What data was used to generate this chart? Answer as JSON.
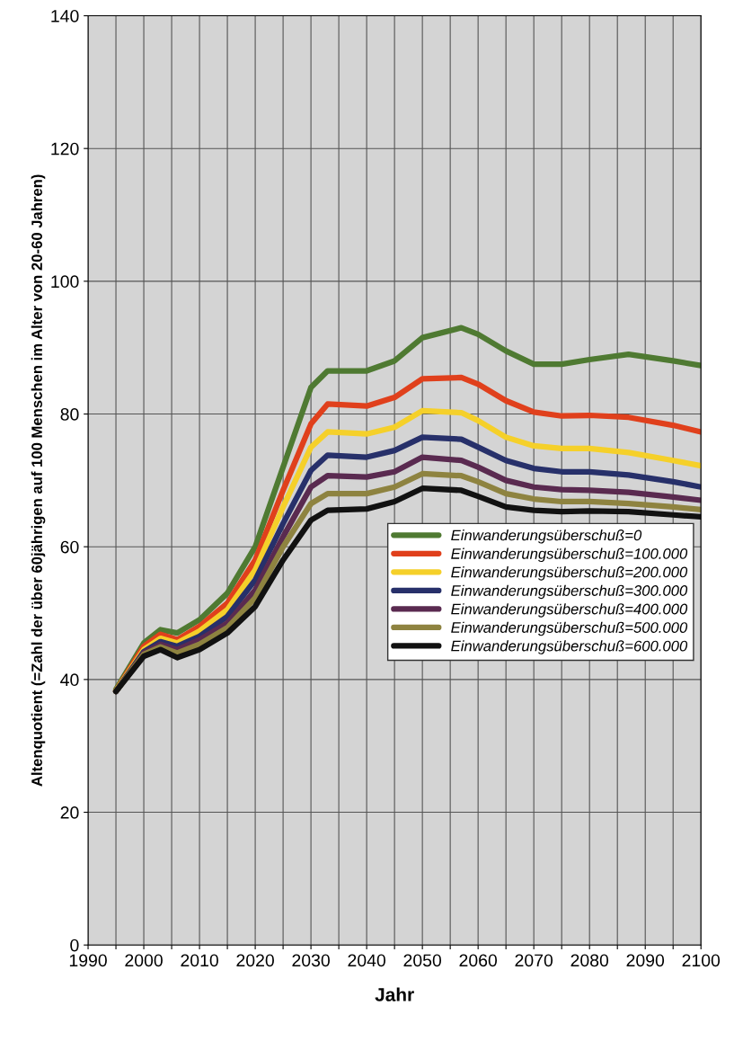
{
  "chart_data": {
    "type": "line",
    "xlabel": "Jahr",
    "ylabel": "Altenquotient (=Zahl der über 60jährigen auf 100 Menschen im Alter von 20-60 Jahren)",
    "x": [
      1995,
      2000,
      2003,
      2006,
      2010,
      2015,
      2020,
      2025,
      2030,
      2033,
      2040,
      2045,
      2050,
      2057,
      2060,
      2065,
      2070,
      2075,
      2080,
      2087,
      2095,
      2100
    ],
    "series": [
      {
        "name": "Einwanderungsüberschuß=0",
        "color": "#4f7a32",
        "values": [
          38.5,
          45.5,
          47.5,
          47,
          49,
          53,
          60,
          72,
          84,
          86.5,
          86.5,
          88,
          91.5,
          93,
          92,
          89.5,
          87.5,
          87.5,
          88.2,
          89,
          88,
          87.3
        ]
      },
      {
        "name": "Einwanderungsüberschuß=100.000",
        "color": "#e0401c",
        "values": [
          38.3,
          45,
          46.8,
          46,
          48,
          51.5,
          58,
          68.5,
          78.5,
          81.5,
          81.2,
          82.5,
          85.3,
          85.5,
          84.5,
          82,
          80.3,
          79.7,
          79.8,
          79.5,
          78.3,
          77.3
        ]
      },
      {
        "name": "Einwanderungsüberschuß=200.000",
        "color": "#f5d02a",
        "values": [
          38.3,
          44.5,
          46.2,
          45.5,
          47.3,
          50.5,
          56.5,
          66,
          75,
          77.3,
          77,
          78,
          80.5,
          80.2,
          79,
          76.5,
          75.2,
          74.8,
          74.8,
          74.2,
          73,
          72.2
        ]
      },
      {
        "name": "Einwanderungsüberschuß=300.000",
        "color": "#27306a",
        "values": [
          38.2,
          44.2,
          45.7,
          45,
          46.5,
          49.5,
          55,
          63.5,
          71.5,
          73.8,
          73.5,
          74.5,
          76.5,
          76.2,
          75,
          73,
          71.8,
          71.3,
          71.3,
          70.8,
          69.8,
          69
        ]
      },
      {
        "name": "Einwanderungsüberschuß=400.000",
        "color": "#5a2a50",
        "values": [
          38.2,
          44,
          45.3,
          44.5,
          46,
          48.5,
          53.5,
          61.5,
          69,
          70.7,
          70.5,
          71.3,
          73.5,
          73,
          72,
          70,
          69,
          68.6,
          68.5,
          68.2,
          67.5,
          67
        ]
      },
      {
        "name": "Einwanderungsüberschuß=500.000",
        "color": "#8e8340",
        "values": [
          38.2,
          43.8,
          44.9,
          44,
          45.3,
          47.8,
          52.3,
          60,
          66.5,
          68,
          68,
          69,
          71,
          70.7,
          69.8,
          68,
          67.2,
          66.8,
          66.8,
          66.5,
          66,
          65.6
        ]
      },
      {
        "name": "Einwanderungsüberschuß=600.000",
        "color": "#111111",
        "values": [
          38.2,
          43.5,
          44.5,
          43.3,
          44.5,
          47,
          51,
          58,
          64,
          65.5,
          65.7,
          66.8,
          68.8,
          68.5,
          67.6,
          66,
          65.5,
          65.3,
          65.4,
          65.3,
          64.8,
          64.5
        ]
      }
    ],
    "xlim": [
      1990,
      2100
    ],
    "ylim": [
      0,
      140
    ],
    "xticks": [
      1990,
      {
        "value": 1995,
        "label": null
      },
      2000,
      {
        "value": 2005,
        "label": null
      },
      2010,
      {
        "value": 2015,
        "label": null
      },
      2020,
      {
        "value": 2025,
        "label": null
      },
      2030,
      {
        "value": 2035,
        "label": null
      },
      2040,
      {
        "value": 2045,
        "label": null
      },
      2050,
      {
        "value": 2055,
        "label": null
      },
      2060,
      {
        "value": 2065,
        "label": null
      },
      2070,
      {
        "value": 2075,
        "label": null
      },
      2080,
      {
        "value": 2085,
        "label": null
      },
      2090,
      {
        "value": 2095,
        "label": null
      },
      2100
    ],
    "yticks": [
      0,
      20,
      40,
      60,
      80,
      100,
      120,
      140
    ],
    "grid": true,
    "legend": "right",
    "marker": "none",
    "line_style": "solid"
  }
}
